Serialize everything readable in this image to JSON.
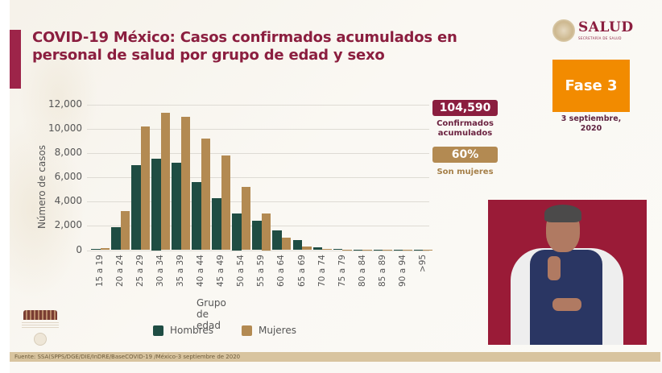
{
  "header": {
    "title_line1": "COVID-19 México: Casos confirmados acumulados en",
    "title_line2": "personal de salud por grupo de edad y sexo",
    "accent_color": "#9d2449"
  },
  "logo": {
    "name": "SALUD",
    "subtitle": "SECRETARÍA DE SALUD"
  },
  "phase": {
    "label": "Fase 3",
    "date_line1": "3 septiembre,",
    "date_line2": "2020",
    "color": "#f28b00"
  },
  "stats": {
    "total_value": "104,590",
    "total_label_line1": "Confirmados",
    "total_label_line2": "acumulados",
    "women_pct": "60%",
    "women_label": "Son mujeres"
  },
  "legend": {
    "men": "Hombres",
    "women": "Mujeres",
    "men_color": "#1f4d43",
    "women_color": "#b38a52"
  },
  "footer": {
    "source": "Fuente: SSA(SPPS/DGE/DIE/InDRE/BaseCOVID-19 /México-3 septiembre de 2020"
  },
  "chart_data": {
    "type": "bar",
    "title": "COVID-19 México: Casos confirmados acumulados en personal de salud por grupo de edad y sexo",
    "xlabel": "Grupo de edad",
    "ylabel": "Número de casos",
    "ylim": [
      0,
      12000
    ],
    "yticks": [
      "0",
      "2,000",
      "4,000",
      "6,000",
      "8,000",
      "10,000",
      "12,000"
    ],
    "grid": true,
    "legend_position": "bottom",
    "categories": [
      "15 a 19",
      "20 a 24",
      "25 a 29",
      "30 a 34",
      "35 a 39",
      "40 a 44",
      "45 a 49",
      "50 a 54",
      "55 a 59",
      "60 a 64",
      "65 a 69",
      "70 a 74",
      "75 a 79",
      "80 a 84",
      "85 a 89",
      "90 a 94",
      ">95"
    ],
    "series": [
      {
        "name": "Hombres",
        "values": [
          100,
          1900,
          7000,
          7500,
          7200,
          5600,
          4300,
          3000,
          2400,
          1600,
          800,
          250,
          100,
          30,
          15,
          10,
          5
        ]
      },
      {
        "name": "Mujeres",
        "values": [
          150,
          3200,
          10200,
          11300,
          11000,
          9200,
          7800,
          5200,
          3000,
          1050,
          300,
          100,
          40,
          15,
          10,
          5,
          3
        ]
      }
    ]
  }
}
